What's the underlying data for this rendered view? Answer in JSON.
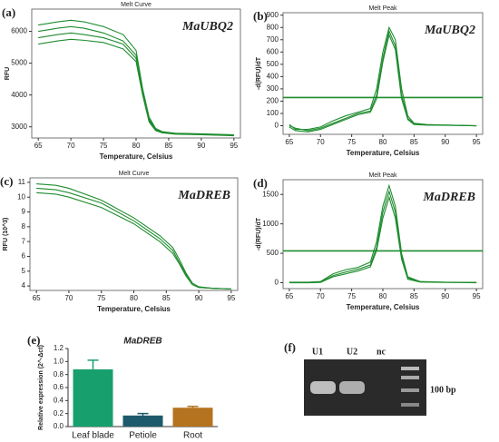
{
  "chart_data": [
    {
      "type": "line",
      "panel_label": "(a)",
      "title": "Melt Curve",
      "annotation": "MaUBQ2",
      "xlabel": "Temperature, Celsius",
      "ylabel": "RFU",
      "x": [
        65,
        68,
        70,
        72,
        75,
        78,
        80,
        81,
        82,
        83,
        84,
        86,
        90,
        95
      ],
      "series": [
        {
          "color": "#1e8c2e",
          "values": [
            6200,
            6300,
            6350,
            6300,
            6150,
            5900,
            5400,
            4200,
            3300,
            2950,
            2850,
            2800,
            2780,
            2750
          ]
        },
        {
          "color": "#1e8c2e",
          "values": [
            6000,
            6100,
            6150,
            6100,
            5950,
            5700,
            5250,
            4100,
            3250,
            2920,
            2830,
            2790,
            2770,
            2740
          ]
        },
        {
          "color": "#1e8c2e",
          "values": [
            5800,
            5900,
            5950,
            5900,
            5800,
            5600,
            5150,
            4050,
            3200,
            2900,
            2820,
            2780,
            2760,
            2730
          ]
        },
        {
          "color": "#1e8c2e",
          "values": [
            5600,
            5700,
            5750,
            5720,
            5650,
            5450,
            5050,
            4000,
            3150,
            2880,
            2810,
            2770,
            2750,
            2720
          ]
        }
      ],
      "xlim": [
        64,
        96
      ],
      "xticks": [
        65,
        70,
        75,
        80,
        85,
        90,
        95
      ],
      "ylim": [
        2650,
        6700
      ],
      "yticks": [
        3000,
        4000,
        5000,
        6000
      ]
    },
    {
      "type": "line",
      "panel_label": "(b)",
      "title": "Melt Peak",
      "annotation": "MaUBQ2",
      "xlabel": "Temperature, Celsius",
      "ylabel": "-d(RFU)/dT",
      "x": [
        65,
        66,
        68,
        70,
        72,
        74,
        76,
        78,
        79,
        80,
        81,
        82,
        83,
        84,
        85,
        87,
        90,
        95
      ],
      "series": [
        {
          "color": "#1e8c2e",
          "values": [
            10,
            -30,
            -30,
            -10,
            40,
            80,
            110,
            140,
            300,
            600,
            800,
            700,
            300,
            80,
            20,
            10,
            5,
            0
          ]
        },
        {
          "color": "#1e8c2e",
          "values": [
            0,
            -20,
            -40,
            -20,
            20,
            60,
            100,
            120,
            250,
            550,
            770,
            650,
            250,
            60,
            15,
            5,
            5,
            0
          ]
        },
        {
          "color": "#1e8c2e",
          "values": [
            -10,
            -40,
            -50,
            -30,
            10,
            50,
            90,
            110,
            220,
            520,
            740,
            620,
            220,
            50,
            10,
            5,
            3,
            0
          ]
        }
      ],
      "threshold": 230,
      "xlim": [
        64,
        96
      ],
      "xticks": [
        65,
        70,
        75,
        80,
        85,
        90,
        95
      ],
      "ylim": [
        -70,
        920
      ],
      "yticks": [
        0,
        100,
        200,
        300,
        400,
        500,
        600,
        700,
        800,
        900
      ]
    },
    {
      "type": "line",
      "panel_label": "(c)",
      "title": "Melt Curve",
      "annotation": "MaDREB",
      "xlabel": "Temperature, Celsius",
      "ylabel": "RFU (10^3)",
      "x": [
        65,
        68,
        70,
        75,
        80,
        84,
        86,
        87,
        88,
        89,
        90,
        92,
        95
      ],
      "series": [
        {
          "color": "#1e8c2e",
          "values": [
            10.9,
            10.8,
            10.6,
            9.8,
            8.6,
            7.4,
            6.6,
            5.8,
            4.9,
            4.2,
            3.95,
            3.85,
            3.8
          ]
        },
        {
          "color": "#1e8c2e",
          "values": [
            10.6,
            10.5,
            10.3,
            9.6,
            8.4,
            7.2,
            6.4,
            5.6,
            4.8,
            4.1,
            3.9,
            3.85,
            3.8
          ]
        },
        {
          "color": "#1e8c2e",
          "values": [
            10.3,
            10.2,
            10.0,
            9.3,
            8.2,
            7.0,
            6.2,
            5.5,
            4.7,
            4.1,
            3.9,
            3.85,
            3.8
          ]
        }
      ],
      "xlim": [
        64,
        96
      ],
      "xticks": [
        65,
        70,
        75,
        80,
        85,
        90,
        95
      ],
      "ylim": [
        3.7,
        11.3
      ],
      "yticks": [
        4,
        5,
        6,
        7,
        8,
        9,
        10,
        11
      ]
    },
    {
      "type": "line",
      "panel_label": "(d)",
      "title": "Melt Peak",
      "annotation": "MaDREB",
      "xlabel": "Temperature, Celsius",
      "ylabel": "-d(RFU)/dT",
      "x": [
        65,
        68,
        70,
        72,
        74,
        76,
        78,
        79,
        80,
        81,
        82,
        83,
        84,
        86,
        90,
        95
      ],
      "series": [
        {
          "color": "#1e8c2e",
          "values": [
            10,
            10,
            20,
            150,
            220,
            260,
            350,
            700,
            1300,
            1650,
            1300,
            500,
            100,
            20,
            10,
            5
          ]
        },
        {
          "color": "#1e8c2e",
          "values": [
            5,
            5,
            10,
            120,
            180,
            230,
            300,
            600,
            1200,
            1550,
            1200,
            450,
            80,
            15,
            8,
            5
          ]
        },
        {
          "color": "#1e8c2e",
          "values": [
            0,
            0,
            5,
            100,
            150,
            200,
            270,
            550,
            1100,
            1450,
            1100,
            400,
            60,
            10,
            5,
            0
          ]
        }
      ],
      "threshold": 540,
      "xlim": [
        64,
        96
      ],
      "xticks": [
        65,
        70,
        75,
        80,
        85,
        90,
        95
      ],
      "ylim": [
        -100,
        1750
      ],
      "yticks": [
        0,
        500,
        1000,
        1500
      ]
    },
    {
      "type": "bar",
      "panel_label": "(e)",
      "title": "MaDREB",
      "ylabel": "Relative expression (2^-Δct)",
      "categories": [
        "Leaf blade",
        "Petiole",
        "Root"
      ],
      "values": [
        0.88,
        0.17,
        0.29
      ],
      "errors": [
        0.14,
        0.03,
        0.02
      ],
      "colors": [
        "#17a06e",
        "#1c5a6c",
        "#b5731f"
      ],
      "ylim": [
        0,
        1.2
      ],
      "yticks": [
        {
          "value": 0,
          "label": "0.0"
        },
        0.2,
        0.4,
        0.6,
        0.8,
        {
          "value": 1,
          "label": "1.0"
        },
        1.2
      ]
    }
  ],
  "gel": {
    "panel_label": "(f)",
    "lanes": [
      "U1",
      "U2",
      "nc"
    ],
    "marker": "100 bp"
  }
}
